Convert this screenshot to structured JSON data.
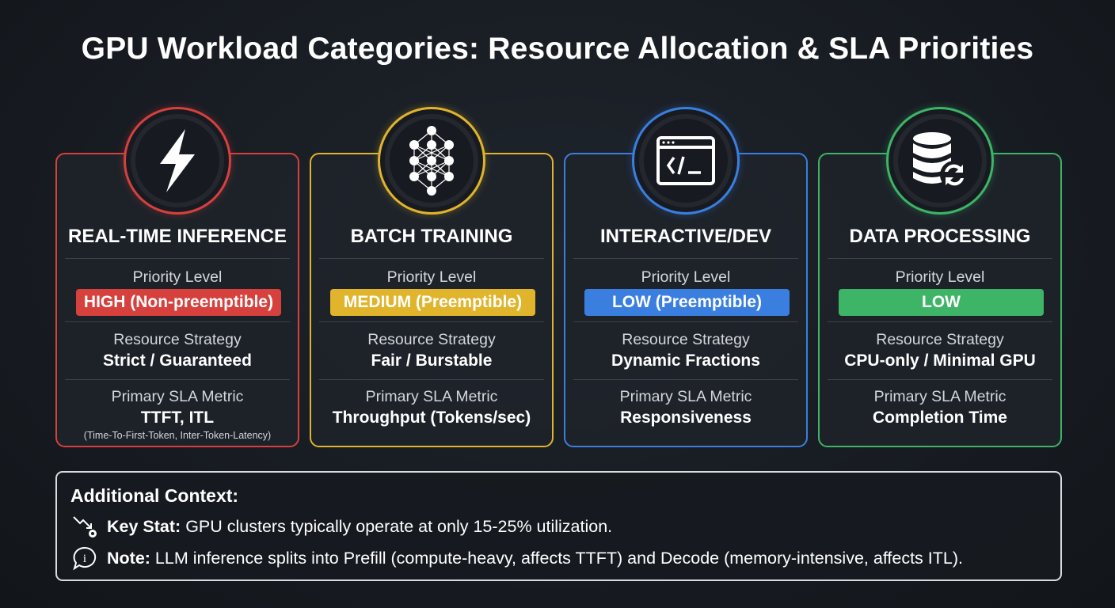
{
  "title": "GPU Workload Categories: Resource Allocation & SLA Priorities",
  "labels": {
    "priority": "Priority Level",
    "strategy": "Resource Strategy",
    "sla": "Primary SLA Metric"
  },
  "cards": [
    {
      "title": "REAL-TIME INFERENCE",
      "icon": "lightning-icon",
      "color": "#d6403d",
      "priority": "HIGH (Non-preemptible)",
      "strategy": "Strict / Guaranteed",
      "sla": "TTFT, ITL",
      "sla_note": "(Time-To-First-Token, Inter-Token-Latency)"
    },
    {
      "title": "BATCH TRAINING",
      "icon": "neural-network-icon",
      "color": "#e0b42b",
      "priority": "MEDIUM (Preemptible)",
      "strategy": "Fair / Burstable",
      "sla": "Throughput (Tokens/sec)"
    },
    {
      "title": "INTERACTIVE/DEV",
      "icon": "terminal-window-icon",
      "color": "#3a7fe0",
      "priority": "LOW (Preemptible)",
      "strategy": "Dynamic Fractions",
      "sla": "Responsiveness"
    },
    {
      "title": "DATA PROCESSING",
      "icon": "database-sync-icon",
      "color": "#3db466",
      "priority": "LOW",
      "strategy": "CPU-only / Minimal GPU",
      "sla": "Completion Time"
    }
  ],
  "context": {
    "heading": "Additional Context:",
    "key_stat_label": "Key Stat:",
    "key_stat": "GPU clusters typically operate at only 15-25% utilization.",
    "note_label": "Note:",
    "note": "LLM inference splits into Prefill (compute-heavy, affects TTFT) and Decode (memory-intensive, affects ITL)."
  }
}
